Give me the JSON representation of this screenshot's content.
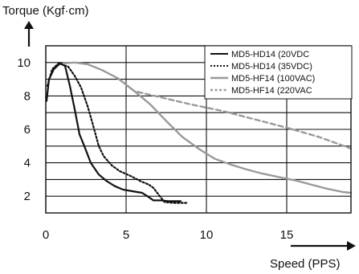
{
  "chart_data": {
    "type": "line",
    "ylabel": "Torque (Kgf·cm)",
    "xlabel": "Speed (PPS)",
    "xlim": [
      0,
      19
    ],
    "ylim": [
      1,
      11
    ],
    "grid": true,
    "legend_placement": "top-right",
    "x_ticks": [
      {
        "value": 0,
        "label": "0"
      },
      {
        "value": 5,
        "label": "5"
      },
      {
        "value": 10,
        "label": "10"
      },
      {
        "value": 15,
        "label": "15"
      }
    ],
    "y_ticks": [
      {
        "value": 2,
        "label": "2"
      },
      {
        "value": 4,
        "label": "4"
      },
      {
        "value": 6,
        "label": "6"
      },
      {
        "value": 8,
        "label": "8"
      },
      {
        "value": 10,
        "label": "10"
      }
    ],
    "grid_x": [
      0,
      5,
      10,
      15
    ],
    "grid_y": [
      2,
      3,
      4,
      5,
      6,
      7,
      8,
      9,
      10
    ],
    "series": [
      {
        "name": "MD5-HD14 (20VDC",
        "color": "#111111",
        "dash": "solid",
        "points": [
          [
            0.05,
            7.7
          ],
          [
            0.2,
            9.0
          ],
          [
            0.5,
            9.6
          ],
          [
            0.9,
            9.95
          ],
          [
            1.2,
            9.8
          ],
          [
            1.5,
            8.6
          ],
          [
            1.8,
            7.2
          ],
          [
            2.1,
            5.7
          ],
          [
            2.4,
            5.0
          ],
          [
            2.8,
            4.0
          ],
          [
            3.3,
            3.3
          ],
          [
            3.8,
            2.9
          ],
          [
            4.3,
            2.6
          ],
          [
            4.8,
            2.4
          ],
          [
            5.4,
            2.3
          ],
          [
            6.0,
            2.2
          ],
          [
            6.4,
            1.95
          ],
          [
            6.7,
            1.75
          ],
          [
            7.2,
            1.75
          ],
          [
            7.6,
            1.7
          ],
          [
            8.4,
            1.7
          ]
        ]
      },
      {
        "name": "MD5-HD14 (35VDC)",
        "color": "#111111",
        "dash": "dotted",
        "points": [
          [
            0.1,
            8.6
          ],
          [
            0.4,
            9.6
          ],
          [
            0.8,
            9.95
          ],
          [
            1.4,
            9.75
          ],
          [
            1.8,
            9.2
          ],
          [
            2.2,
            8.5
          ],
          [
            2.6,
            7.4
          ],
          [
            2.9,
            6.4
          ],
          [
            3.3,
            5.0
          ],
          [
            3.6,
            4.4
          ],
          [
            4.1,
            3.85
          ],
          [
            4.6,
            3.5
          ],
          [
            5.3,
            3.2
          ],
          [
            5.9,
            2.9
          ],
          [
            6.4,
            2.7
          ],
          [
            6.7,
            2.5
          ],
          [
            7.1,
            2.0
          ],
          [
            7.4,
            1.65
          ],
          [
            8.0,
            1.6
          ],
          [
            8.8,
            1.6
          ]
        ]
      },
      {
        "name": "MD5-HF14 (100VAC)",
        "color": "#9a9a9a",
        "dash": "solid",
        "points": [
          [
            1.1,
            9.95
          ],
          [
            1.8,
            10.0
          ],
          [
            2.6,
            9.9
          ],
          [
            3.5,
            9.55
          ],
          [
            4.5,
            9.05
          ],
          [
            5.5,
            8.3
          ],
          [
            6.5,
            7.5
          ],
          [
            7.5,
            6.5
          ],
          [
            8.5,
            5.55
          ],
          [
            9.5,
            4.85
          ],
          [
            10.5,
            4.25
          ],
          [
            11.5,
            3.9
          ],
          [
            12.5,
            3.6
          ],
          [
            13.5,
            3.35
          ],
          [
            14.5,
            3.15
          ],
          [
            15.5,
            2.95
          ],
          [
            16.5,
            2.7
          ],
          [
            17.5,
            2.45
          ],
          [
            18.5,
            2.25
          ],
          [
            19.0,
            2.2
          ]
        ]
      },
      {
        "name": "MD5-HF14 (220VAC",
        "color": "#9a9a9a",
        "dash": "dashed",
        "points": [
          [
            4.5,
            9.05
          ],
          [
            5.5,
            8.3
          ],
          [
            7.0,
            7.95
          ],
          [
            9.0,
            7.5
          ],
          [
            11.0,
            7.1
          ],
          [
            13.0,
            6.6
          ],
          [
            15.0,
            6.1
          ],
          [
            17.0,
            5.55
          ],
          [
            19.0,
            4.85
          ]
        ]
      }
    ]
  }
}
